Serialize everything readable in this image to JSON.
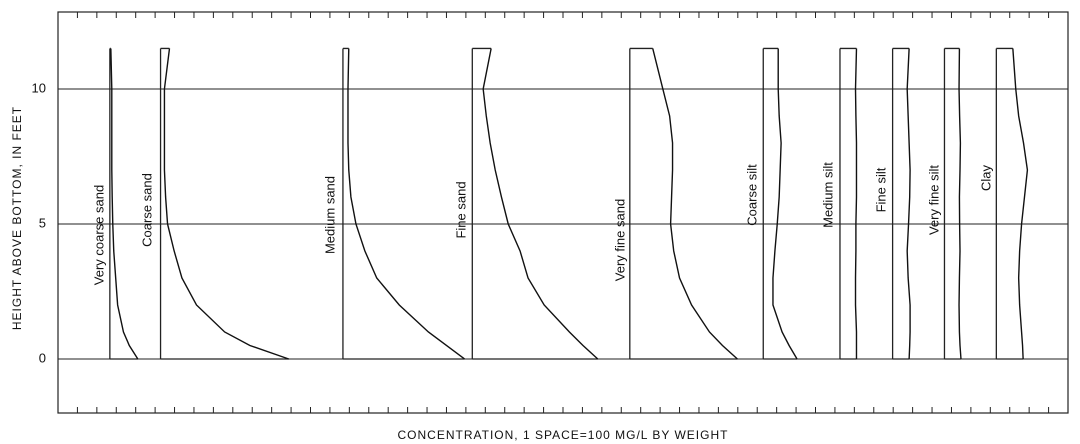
{
  "chart_data": {
    "type": "line",
    "ylabel": "HEIGHT ABOVE BOTTOM, IN FEET",
    "xlabel": "CONCENTRATION, 1 SPACE=100 MG/L BY WEIGHT",
    "y": [
      0,
      0.5,
      1,
      2,
      3,
      4,
      5,
      6,
      7,
      8,
      9,
      10,
      11.5
    ],
    "series": [
      {
        "name": "Very coarse sand",
        "color": "#111111",
        "values": [
          1.44,
          1.0,
          0.7,
          0.4,
          0.3,
          0.2,
          0.15,
          0.12,
          0.1,
          0.1,
          0.1,
          0.1,
          0.05
        ]
      },
      {
        "name": "Coarse sand",
        "color": "#111111",
        "values": [
          6.6,
          4.6,
          3.3,
          1.85,
          1.1,
          0.7,
          0.36,
          0.26,
          0.2,
          0.2,
          0.2,
          0.2,
          0.46
        ]
      },
      {
        "name": "Medium sand",
        "color": "#111111",
        "values": [
          6.26,
          5.33,
          4.4,
          2.9,
          1.74,
          1.13,
          0.67,
          0.41,
          0.3,
          0.26,
          0.26,
          0.26,
          0.3
        ]
      },
      {
        "name": "Fine sand",
        "color": "#111111",
        "values": [
          6.46,
          5.7,
          5.0,
          3.7,
          2.87,
          2.46,
          1.85,
          1.5,
          1.18,
          0.92,
          0.72,
          0.56,
          0.97
        ]
      },
      {
        "name": "Very fine sand",
        "color": "#111111",
        "values": [
          5.54,
          4.77,
          4.1,
          3.18,
          2.56,
          2.26,
          2.1,
          2.15,
          2.2,
          2.2,
          2.05,
          1.7,
          1.18
        ]
      },
      {
        "name": "Coarse silt",
        "color": "#111111",
        "values": [
          1.74,
          1.33,
          0.97,
          0.5,
          0.5,
          0.6,
          0.72,
          0.82,
          0.87,
          0.92,
          0.82,
          0.77,
          0.77
        ]
      },
      {
        "name": "Medium silt",
        "color": "#111111",
        "values": [
          0.85,
          0.85,
          0.85,
          0.8,
          0.8,
          0.82,
          0.82,
          0.85,
          0.85,
          0.85,
          0.82,
          0.8,
          0.85
        ]
      },
      {
        "name": "Fine silt",
        "color": "#111111",
        "values": [
          0.85,
          0.88,
          0.9,
          0.9,
          0.8,
          0.75,
          0.82,
          0.88,
          0.9,
          0.85,
          0.8,
          0.75,
          0.85
        ]
      },
      {
        "name": "Very fine silt",
        "color": "#111111",
        "values": [
          0.85,
          0.8,
          0.77,
          0.75,
          0.77,
          0.8,
          0.78,
          0.77,
          0.8,
          0.82,
          0.78,
          0.75,
          0.77
        ]
      },
      {
        "name": "Clay",
        "color": "#111111",
        "values": [
          1.38,
          1.35,
          1.3,
          1.2,
          1.15,
          1.2,
          1.3,
          1.45,
          1.6,
          1.4,
          1.15,
          1.0,
          0.85
        ]
      }
    ],
    "xlim": [
      0,
      52
    ],
    "ylim": [
      -2,
      12.85
    ],
    "yticks": [
      0,
      5,
      10
    ],
    "grid": true
  }
}
